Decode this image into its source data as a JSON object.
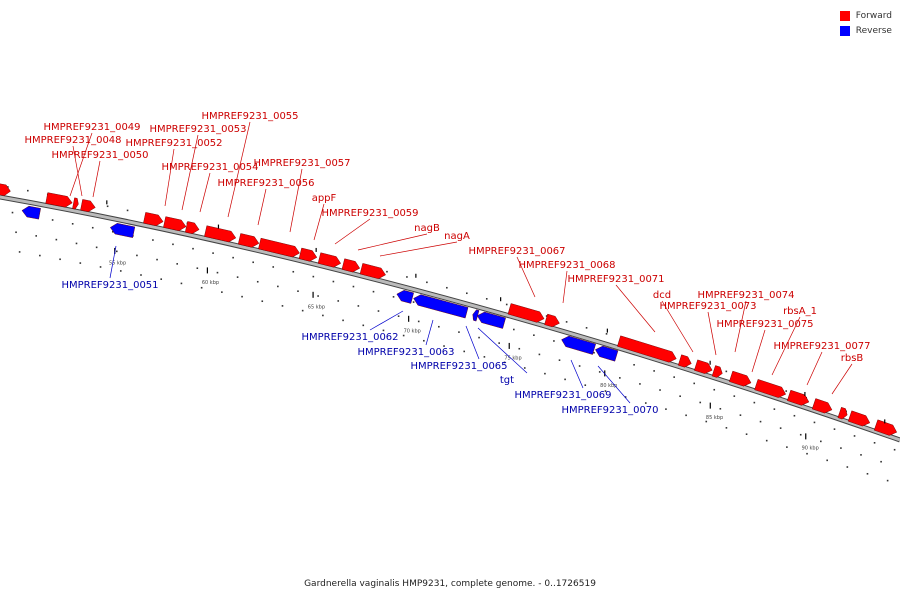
{
  "legend": {
    "forward_label": "Forward",
    "reverse_label": "Reverse",
    "forward_color": "#ff0000",
    "reverse_color": "#0000ff"
  },
  "caption": "Gardnerella vaginalis HMP9231, complete genome. - 0..1726519",
  "scale_labels": [
    "55 kbp",
    "60 kbp",
    "65 kbp",
    "70 kbp",
    "75 kbp",
    "80 kbp",
    "85 kbp",
    "90 kbp"
  ],
  "forward_genes": [
    "HMPREF9231_0049",
    "HMPREF9231_0048",
    "HMPREF9231_0050",
    "HMPREF9231_0052",
    "HMPREF9231_0053",
    "HMPREF9231_0054",
    "HMPREF9231_0055",
    "HMPREF9231_0056",
    "HMPREF9231_0057",
    "appF",
    "HMPREF9231_0059",
    "nagB",
    "nagA",
    "HMPREF9231_0067",
    "HMPREF9231_0068",
    "HMPREF9231_0071",
    "dcd",
    "HMPREF9231_0073",
    "HMPREF9231_0074",
    "rbsA_1",
    "HMPREF9231_0075",
    "HMPREF9231_0077",
    "rbsB"
  ],
  "reverse_genes": [
    "HMPREF9231_0051",
    "HMPREF9231_0062",
    "HMPREF9231_0063",
    "HMPREF9231_0065",
    "tgt",
    "HMPREF9231_0069",
    "HMPREF9231_0070"
  ]
}
